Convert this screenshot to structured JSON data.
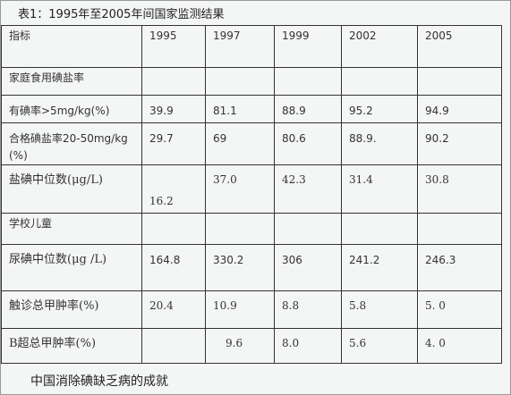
{
  "caption": "表1：1995年至2005年间国家监测结果",
  "header": [
    "指标",
    "1995",
    "1997",
    "1999",
    "2002",
    "2005"
  ],
  "rows": [
    {
      "label": "家庭食用碘盐率",
      "values": [
        "",
        "",
        "",
        "",
        ""
      ]
    },
    {
      "label": "有碘率>5mg/kg(%)",
      "values": [
        "39.9",
        "81.1",
        "88.9",
        "95.2",
        "94.9"
      ]
    },
    {
      "label": "合格碘盐率20-50mg/kg (%)",
      "values": [
        "29.7",
        "69",
        "80.6",
        "88.9.",
        "90.2"
      ]
    },
    {
      "label": "盐碘中位数(μg/L)",
      "values": [
        "16.2",
        "37.0",
        "42.3",
        "31.4",
        "30.8"
      ]
    },
    {
      "label": "学校儿童",
      "values": [
        "",
        "",
        "",
        "",
        ""
      ]
    },
    {
      "label": "尿碘中位数(μg /L)",
      "values": [
        "164.8",
        "330.2",
        "306",
        "241.2",
        "246.3"
      ]
    },
    {
      "label": "触诊总甲肿率(%)",
      "values": [
        "20.4",
        "10.9",
        "8.8",
        "5.8",
        "5. 0"
      ]
    },
    {
      "label": "B超总甲肿率(%)",
      "values": [
        "",
        "9.6",
        "8.0",
        "5.6",
        "4. 0"
      ]
    }
  ],
  "footer": "中国消除碘缺乏病的成就"
}
